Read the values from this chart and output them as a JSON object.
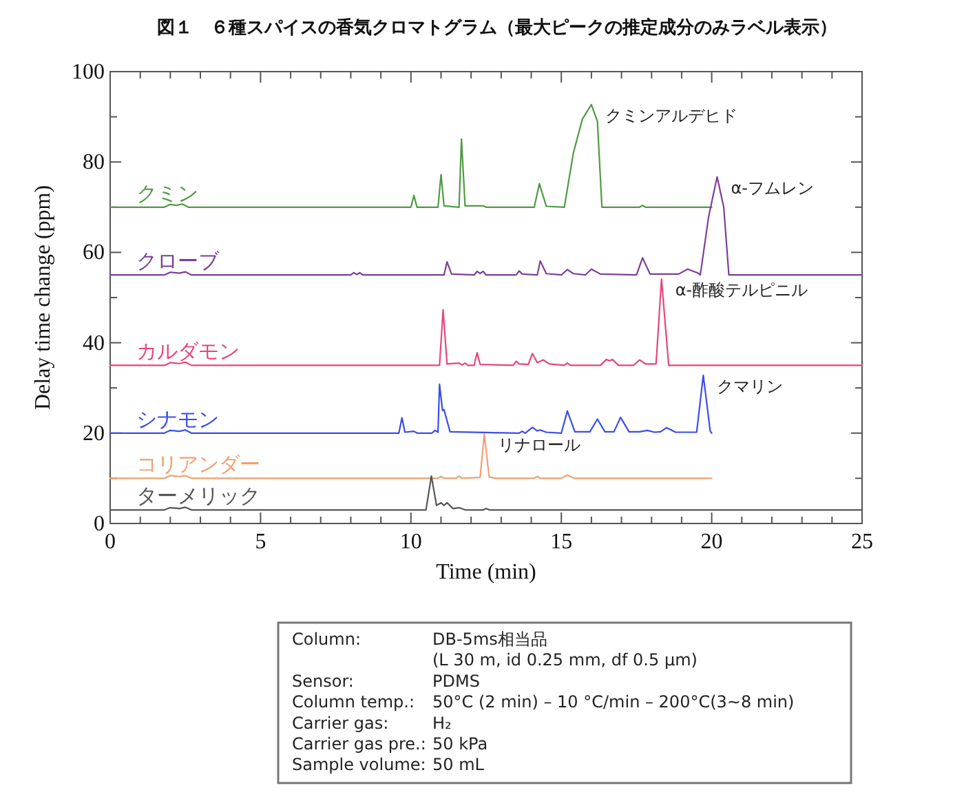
{
  "chart_data": {
    "type": "line",
    "title": "図１　６種スパイスの香気クロマトグラム（最大ピークの推定成分のみラベル表示）",
    "xlabel": "Time (min)",
    "ylabel": "Delay time change (ppm)",
    "xlim": [
      0,
      25
    ],
    "ylim": [
      0,
      100
    ],
    "xticks": [
      0,
      {
        "value": 1,
        "label": null
      },
      {
        "value": 2,
        "label": null
      },
      {
        "value": 3,
        "label": null
      },
      {
        "value": 4,
        "label": null
      },
      5,
      {
        "value": 6,
        "label": null
      },
      {
        "value": 7,
        "label": null
      },
      {
        "value": 8,
        "label": null
      },
      {
        "value": 9,
        "label": null
      },
      10,
      {
        "value": 11,
        "label": null
      },
      {
        "value": 12,
        "label": null
      },
      {
        "value": 13,
        "label": null
      },
      {
        "value": 14,
        "label": null
      },
      15,
      {
        "value": 16,
        "label": null
      },
      {
        "value": 17,
        "label": null
      },
      {
        "value": 18,
        "label": null
      },
      {
        "value": 19,
        "label": null
      },
      20,
      {
        "value": 21,
        "label": null
      },
      {
        "value": 22,
        "label": null
      },
      {
        "value": 23,
        "label": null
      },
      {
        "value": 24,
        "label": null
      },
      25
    ],
    "yticks": [
      0,
      {
        "value": 10,
        "label": null
      },
      20,
      {
        "value": 30,
        "label": null
      },
      40,
      {
        "value": 50,
        "label": null
      },
      60,
      {
        "value": 70,
        "label": null
      },
      80,
      {
        "value": 90,
        "label": null
      },
      100
    ],
    "grid": false,
    "marker": "none",
    "line_style": "solid",
    "series": [
      {
        "name": "クミン",
        "color": "#4f9a43",
        "x": [
          0,
          1.8,
          2.0,
          2.2,
          2.4,
          2.6,
          10.0,
          10.1,
          10.2,
          10.9,
          11.0,
          11.1,
          11.6,
          11.68,
          11.8,
          12.4,
          12.5,
          14.1,
          14.27,
          14.5,
          15.1,
          15.4,
          15.7,
          16.0,
          16.2,
          16.35,
          17.6,
          17.7,
          17.8,
          20.0
        ],
        "values": [
          70,
          70,
          70.6,
          70.4,
          70.7,
          70,
          70,
          72.6,
          70,
          70,
          77.2,
          70.3,
          70,
          85.1,
          70.3,
          70.3,
          70,
          70,
          75.2,
          70.2,
          70,
          82,
          89.5,
          92.7,
          89,
          70,
          70,
          70.4,
          70,
          70
        ]
      },
      {
        "name": "クローブ",
        "color": "#7b3f98",
        "x": [
          0,
          1.8,
          2.0,
          2.3,
          2.5,
          2.7,
          8.0,
          8.1,
          8.2,
          8.3,
          8.4,
          11.1,
          11.2,
          11.35,
          12.1,
          12.2,
          12.3,
          12.4,
          12.5,
          13.5,
          13.6,
          13.7,
          14.2,
          14.3,
          14.5,
          15.0,
          15.2,
          15.4,
          15.8,
          16.0,
          16.3,
          17.5,
          17.7,
          17.95,
          18.9,
          19.2,
          19.55,
          19.62,
          19.9,
          20.18,
          20.4,
          20.57,
          25
        ],
        "values": [
          55,
          55,
          55.6,
          55.4,
          55.7,
          55,
          55,
          55.5,
          55.1,
          55.5,
          55,
          55,
          57.9,
          55.2,
          55,
          55.8,
          55.3,
          55.8,
          55,
          55,
          55.9,
          55.2,
          55,
          58.1,
          55.3,
          55,
          56.2,
          55.3,
          55,
          56.3,
          55.2,
          55,
          58.8,
          55.2,
          55.2,
          56.3,
          55.4,
          55,
          68,
          76.7,
          70,
          55,
          55
        ]
      },
      {
        "name": "カルダモン",
        "color": "#e8457a",
        "x": [
          0,
          1.8,
          2.0,
          2.3,
          2.5,
          2.7,
          10.95,
          11.07,
          11.2,
          11.6,
          11.7,
          11.8,
          11.9,
          12.1,
          12.2,
          12.3,
          13.4,
          13.5,
          13.6,
          13.9,
          14.04,
          14.2,
          14.4,
          14.6,
          15.1,
          15.2,
          15.3,
          16.3,
          16.5,
          16.6,
          16.7,
          16.9,
          17.4,
          17.6,
          17.8,
          18.15,
          18.33,
          18.57,
          25
        ],
        "values": [
          35,
          35,
          35.6,
          35.4,
          35.7,
          35,
          35,
          47.3,
          35.3,
          35.5,
          35.1,
          35.5,
          35,
          35,
          37.8,
          35.2,
          35,
          35.9,
          35.3,
          35.2,
          37.6,
          35.6,
          36.2,
          35.3,
          35,
          35.5,
          35,
          35,
          36.3,
          36,
          36.3,
          35,
          35,
          36.2,
          35.3,
          35.3,
          54.1,
          35,
          35
        ]
      },
      {
        "name": "シナモン",
        "color": "#3b4de8",
        "x": [
          0,
          1.8,
          2.0,
          2.3,
          2.5,
          2.7,
          9.6,
          9.7,
          9.8,
          10.1,
          10.2,
          10.7,
          10.8,
          10.9,
          10.95,
          11.05,
          11.1,
          11.3,
          13.6,
          13.7,
          13.8,
          14.04,
          14.2,
          14.3,
          14.5,
          15.0,
          15.2,
          15.45,
          15.95,
          16.2,
          16.45,
          16.75,
          16.97,
          17.25,
          17.6,
          17.86,
          18.1,
          18.3,
          18.5,
          18.8,
          19.5,
          19.72,
          19.95,
          20.0
        ],
        "values": [
          20,
          20,
          20.6,
          20.4,
          20.7,
          20,
          20,
          23.4,
          20.2,
          20.4,
          20,
          20,
          20.6,
          20.2,
          30.8,
          25,
          25.2,
          20.3,
          20,
          20.4,
          20,
          21.3,
          20.5,
          20.7,
          20.2,
          20,
          24.9,
          20.3,
          20.3,
          23.1,
          20.3,
          20.3,
          23.5,
          20.3,
          20.3,
          20.6,
          20.2,
          20.3,
          21.2,
          20.2,
          20.2,
          32.8,
          20.5,
          20
        ]
      },
      {
        "name": "コリアンダー",
        "color": "#f0a070",
        "x": [
          0,
          1.8,
          2.0,
          2.3,
          2.5,
          2.7,
          10.9,
          11.0,
          11.1,
          11.5,
          11.6,
          11.7,
          12.3,
          12.44,
          12.6,
          12.8,
          14.1,
          14.2,
          14.3,
          15.0,
          15.2,
          15.45,
          20.0
        ],
        "values": [
          10,
          10,
          10.6,
          10.4,
          10.6,
          10,
          10,
          10.4,
          10,
          10,
          10.5,
          10,
          10.2,
          19.8,
          10.3,
          10,
          10,
          10.4,
          10,
          10,
          10.7,
          10,
          10
        ]
      },
      {
        "name": "ターメリック",
        "color": "#555555",
        "x": [
          0,
          1.8,
          2.0,
          2.3,
          2.5,
          2.7,
          10.5,
          10.68,
          10.85,
          11.0,
          11.1,
          11.2,
          11.4,
          11.6,
          11.8,
          12.4,
          12.5,
          12.6,
          25
        ],
        "values": [
          3,
          3,
          3.5,
          3.3,
          3.6,
          3,
          3,
          10.5,
          4,
          4.6,
          4,
          4.6,
          3.3,
          3.5,
          3,
          3,
          3.3,
          3,
          3
        ]
      }
    ],
    "annotations": [
      {
        "text": "クミンアルデヒド",
        "x": 16.0,
        "y": 92.7
      },
      {
        "text": "α-フムレン",
        "x": 20.18,
        "y": 76.7
      },
      {
        "text": "α-酢酸テルピニル",
        "x": 18.33,
        "y": 54.1
      },
      {
        "text": "クマリン",
        "x": 19.72,
        "y": 32.8
      },
      {
        "text": "リナロール",
        "x": 12.44,
        "y": 19.8
      },
      "Column:",
      "DB-5ms相当品",
      "(L 30 m, id 0.25 mm, df 0.5 μm)",
      "Sensor:",
      "PDMS",
      "Column temp.:",
      "50°C (2 min) – 10 °C/min – 200°C(3∼8 min)",
      "Carrier gas:",
      "H₂",
      "Carrier gas pre.:",
      "50 kPa",
      "Sample volume:",
      "50 mL"
    ]
  }
}
